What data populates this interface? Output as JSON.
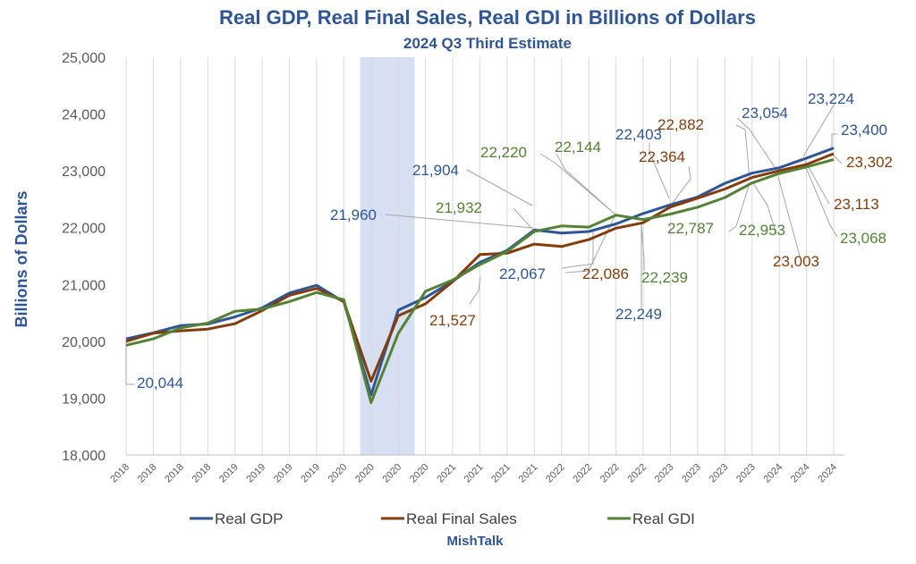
{
  "chart_data": {
    "type": "line",
    "title": "Real GDP, Real Final Sales, Real GDI in Billions of Dollars",
    "subtitle": "2024 Q3 Third Estimate",
    "ylabel": "Billions of Dollars",
    "xlabel": "",
    "ylim": [
      18000,
      25000
    ],
    "yticks": [
      "18,000",
      "19,000",
      "20,000",
      "21,000",
      "22,000",
      "23,000",
      "24,000",
      "25,000"
    ],
    "grid": "vertical gridlines only",
    "legend_position": "bottom",
    "credit": "MishTalk",
    "categories": [
      "2018",
      "2018",
      "2018",
      "2018",
      "2019",
      "2019",
      "2019",
      "2019",
      "2020",
      "2020",
      "2020",
      "2020",
      "2021",
      "2021",
      "2021",
      "2021",
      "2022",
      "2022",
      "2022",
      "2022",
      "2023",
      "2023",
      "2023",
      "2023",
      "2024",
      "2024",
      "2024"
    ],
    "recession_shading": {
      "from_index": 8.6,
      "to_index": 10.6,
      "color": "#d6e0f2"
    },
    "series": [
      {
        "name": "Real GDP",
        "color": "#2e5596",
        "values": [
          20044,
          20150,
          20276,
          20304,
          20430,
          20590,
          20850,
          20985,
          20693,
          19056,
          20548,
          20771,
          21058,
          21390,
          21600,
          21960,
          21904,
          21932,
          22067,
          22249,
          22403,
          22539,
          22780,
          22960,
          23054,
          23224,
          23400
        ]
      },
      {
        "name": "Real Final Sales",
        "color": "#843c0c",
        "values": [
          20000,
          20142,
          20185,
          20215,
          20310,
          20540,
          20810,
          20930,
          20700,
          19300,
          20450,
          20660,
          21050,
          21527,
          21550,
          21710,
          21668,
          21790,
          21990,
          22086,
          22364,
          22520,
          22680,
          22882,
          23003,
          23113,
          23302
        ]
      },
      {
        "name": "Real GDI",
        "color": "#548235",
        "values": [
          19930,
          20044,
          20236,
          20320,
          20530,
          20568,
          20700,
          20860,
          20730,
          18920,
          20140,
          20880,
          21080,
          21350,
          21580,
          21932,
          22030,
          22010,
          22220,
          22144,
          22239,
          22360,
          22530,
          22787,
          22953,
          23068,
          23200
        ]
      }
    ],
    "annotations": [
      {
        "text": "20,044",
        "series": "Real GDP"
      },
      {
        "text": "21,960",
        "series": "Real GDP"
      },
      {
        "text": "21,904",
        "series": "Real GDP"
      },
      {
        "text": "22,067",
        "series": "Real GDP"
      },
      {
        "text": "22,249",
        "series": "Real GDP"
      },
      {
        "text": "22,403",
        "series": "Real GDP"
      },
      {
        "text": "23,054",
        "series": "Real GDP"
      },
      {
        "text": "23,224",
        "series": "Real GDP"
      },
      {
        "text": "23,400",
        "series": "Real GDP"
      },
      {
        "text": "21,527",
        "series": "Real Final Sales"
      },
      {
        "text": "22,086",
        "series": "Real Final Sales"
      },
      {
        "text": "22,364",
        "series": "Real Final Sales"
      },
      {
        "text": "22,882",
        "series": "Real Final Sales"
      },
      {
        "text": "23,003",
        "series": "Real Final Sales"
      },
      {
        "text": "23,113",
        "series": "Real Final Sales"
      },
      {
        "text": "23,302",
        "series": "Real Final Sales"
      },
      {
        "text": "21,932",
        "series": "Real GDI"
      },
      {
        "text": "22,220",
        "series": "Real GDI"
      },
      {
        "text": "22,144",
        "series": "Real GDI"
      },
      {
        "text": "22,239",
        "series": "Real GDI"
      },
      {
        "text": "22,787",
        "series": "Real GDI"
      },
      {
        "text": "22,953",
        "series": "Real GDI"
      },
      {
        "text": "23,068",
        "series": "Real GDI"
      }
    ]
  }
}
